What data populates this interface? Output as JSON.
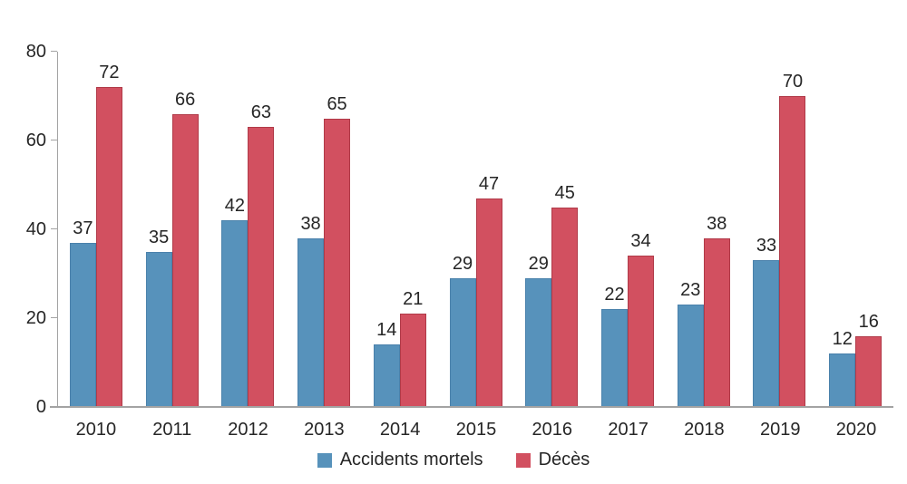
{
  "chart_data": {
    "type": "bar",
    "title": "",
    "xlabel": "",
    "ylabel": "",
    "categories": [
      "2010",
      "2011",
      "2012",
      "2013",
      "2014",
      "2015",
      "2016",
      "2017",
      "2018",
      "2019",
      "2020"
    ],
    "series": [
      {
        "name": "Accidents mortels",
        "color": "#5792bb",
        "border_color": "#4a81ab",
        "values": [
          37,
          35,
          42,
          38,
          14,
          29,
          29,
          22,
          23,
          33,
          12
        ]
      },
      {
        "name": "Décès",
        "color": "#d25060",
        "border_color": "#b03a48",
        "values": [
          72,
          66,
          63,
          65,
          21,
          47,
          45,
          34,
          38,
          70,
          16
        ]
      }
    ],
    "ylim": [
      0,
      80
    ],
    "yticks": [
      0,
      20,
      40,
      60,
      80
    ],
    "grid": false,
    "legend_position": "bottom",
    "data_labels": true
  },
  "colors": {
    "axis": "#a3a3a3",
    "text": "#262626",
    "background": "#ffffff"
  }
}
